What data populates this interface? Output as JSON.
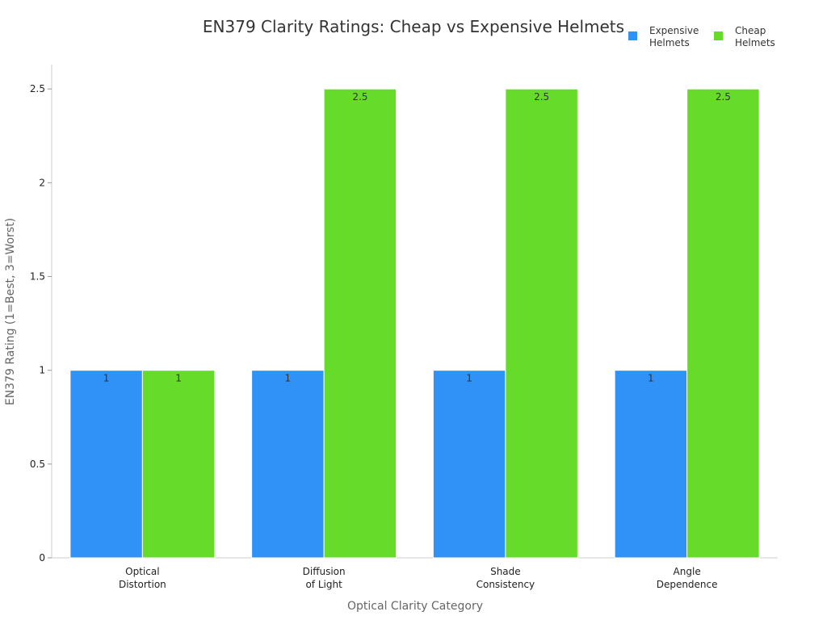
{
  "chart_data": {
    "type": "bar",
    "title": "EN379 Clarity Ratings: Cheap vs Expensive Helmets",
    "xlabel": "Optical Clarity Category",
    "ylabel": "EN379 Rating (1=Best, 3=Worst)",
    "categories": [
      [
        "Optical",
        "Distortion"
      ],
      [
        "Diffusion",
        "of Light"
      ],
      [
        "Shade",
        "Consistency"
      ],
      [
        "Angle",
        "Dependence"
      ]
    ],
    "series": [
      {
        "name": [
          "Expensive",
          "Helmets"
        ],
        "values": [
          1,
          1,
          1,
          1
        ],
        "color": "#3091F6"
      },
      {
        "name": [
          "Cheap",
          "Helmets"
        ],
        "values": [
          1,
          2.5,
          2.5,
          2.5
        ],
        "color": "#66DB29"
      }
    ],
    "yticks": [
      0,
      0.5,
      1,
      1.5,
      2,
      2.5
    ],
    "ytick_labels": [
      "0",
      "0.5",
      "1",
      "1.5",
      "2",
      "2.5"
    ],
    "ylim": [
      0,
      2.63
    ],
    "grid": false,
    "legend": "top-right"
  }
}
